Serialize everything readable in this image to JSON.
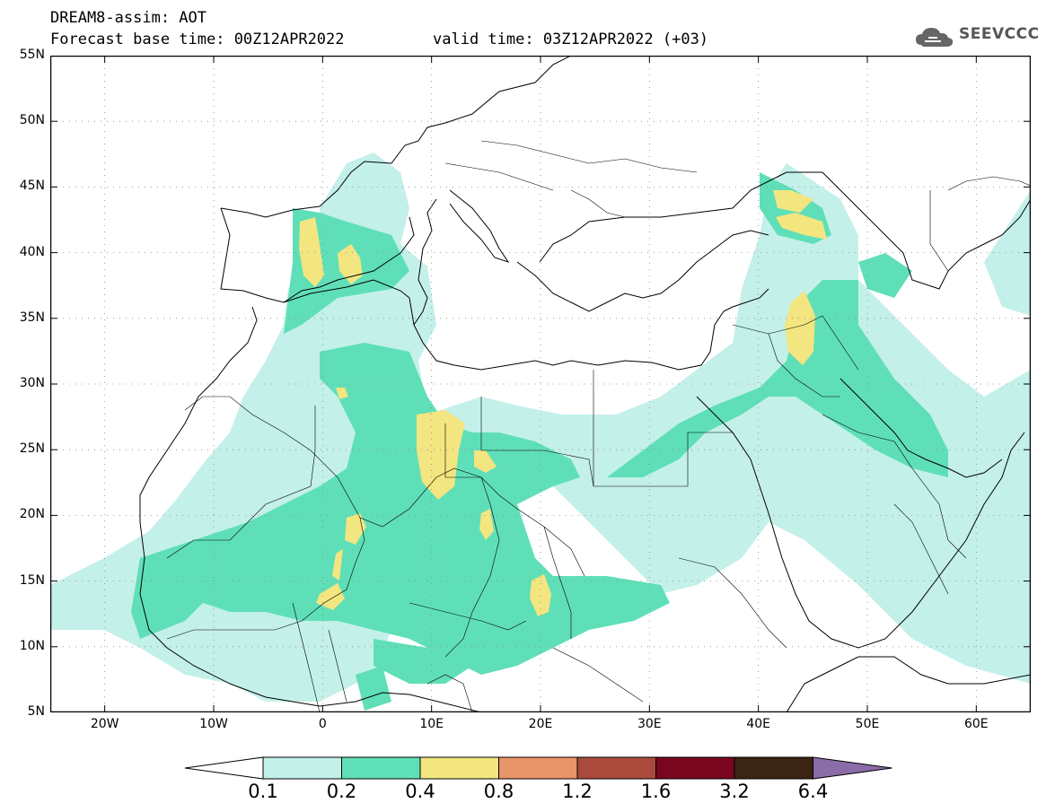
{
  "header": {
    "title": "DREAM8-assim: AOT",
    "subtitle": "Forecast base time: 00Z12APR2022",
    "valid": "valid time: 03Z12APR2022 (+03)"
  },
  "logo": {
    "text": "SEEVCCC"
  },
  "map": {
    "lon_range": [
      -25,
      65
    ],
    "lat_range": [
      5,
      55
    ],
    "lat_labels": [
      "55N",
      "50N",
      "45N",
      "40N",
      "35N",
      "30N",
      "25N",
      "20N",
      "15N",
      "10N",
      "5N"
    ],
    "lon_labels": [
      "20W",
      "10W",
      "0",
      "10E",
      "20E",
      "30E",
      "40E",
      "50E",
      "60E"
    ],
    "grid": true
  },
  "colorbar": {
    "labels": [
      "0.1",
      "0.2",
      "0.4",
      "0.8",
      "1.2",
      "1.6",
      "3.2",
      "6.4"
    ],
    "colors": [
      "#c4f0ea",
      "#5fdfb8",
      "#f3e580",
      "#e99469",
      "#a94a3d",
      "#79051f",
      "#3a2413",
      "#8b6ca8"
    ]
  }
}
